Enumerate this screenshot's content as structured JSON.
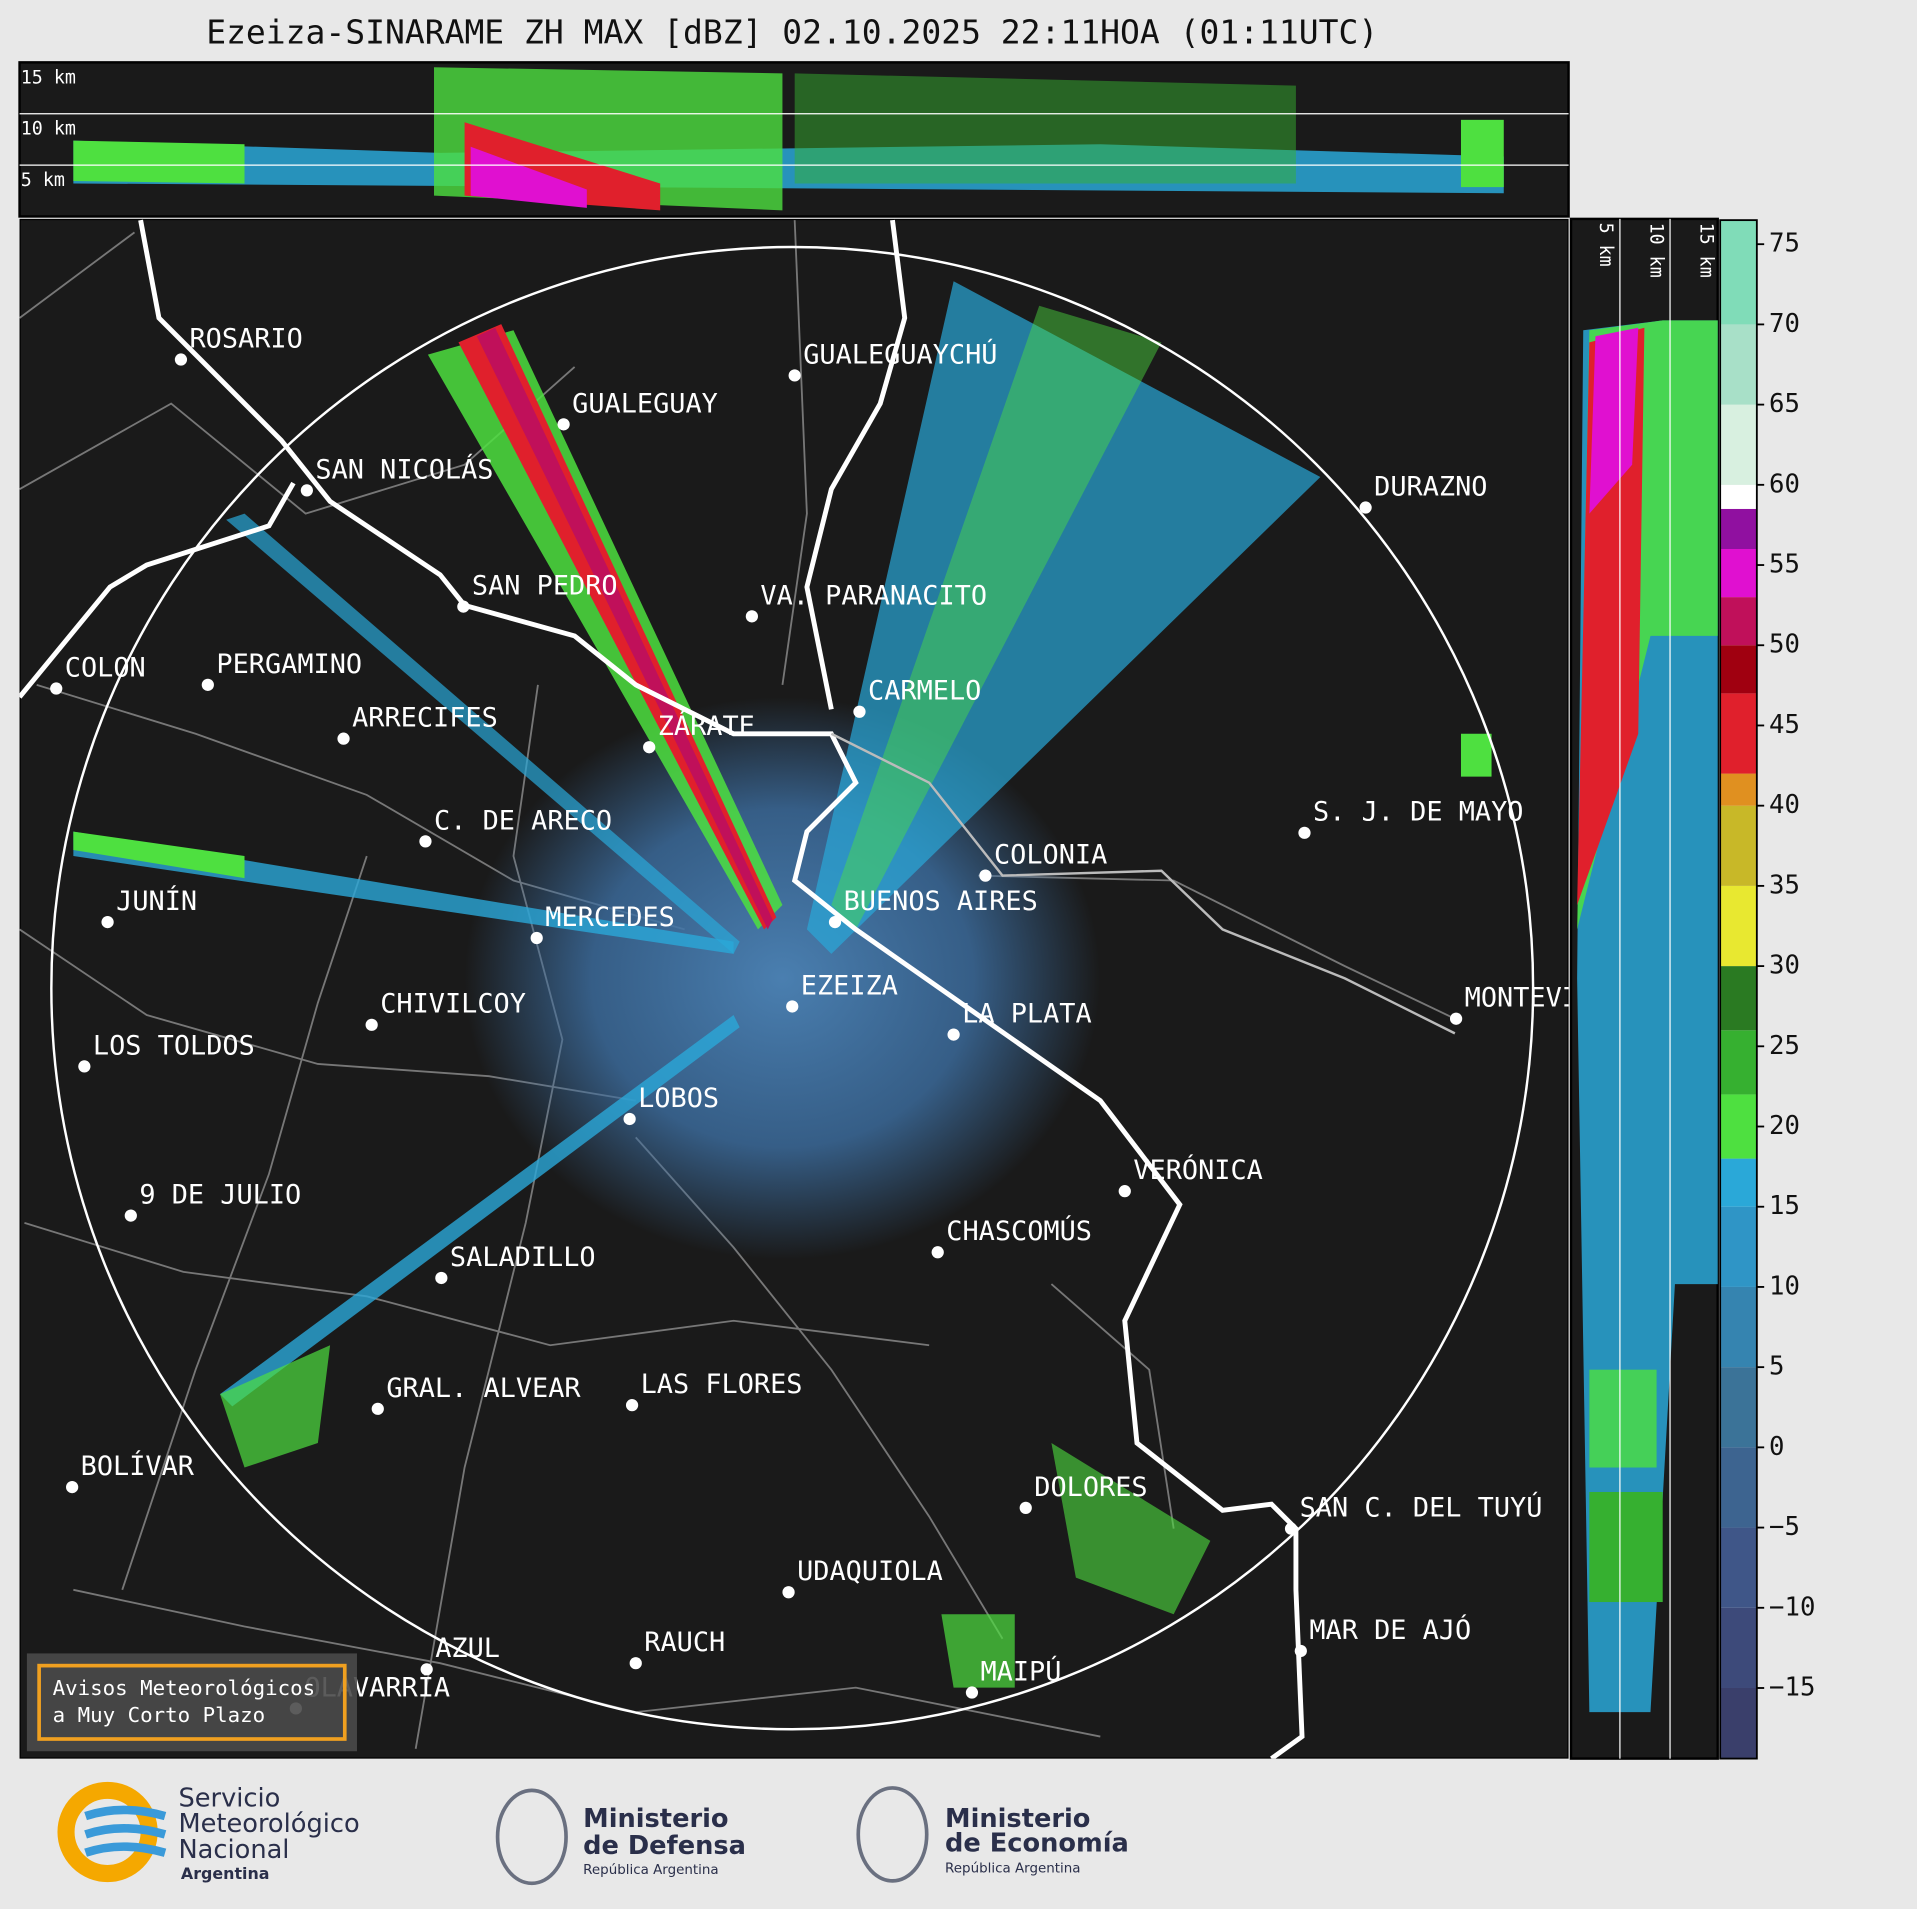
{
  "title": "Ezeiza-SINARAME ZH MAX [dBZ] 02.10.2025 22:11HOA (01:11UTC)",
  "top_panel": {
    "km_labels": [
      "15 km",
      "10 km",
      "5 km"
    ]
  },
  "side_panel": {
    "km_labels": [
      "5 km",
      "10 km",
      "15 km"
    ]
  },
  "cities": [
    "ROSARIO",
    "GUALEGUAYCHÚ",
    "GUALEGUAY",
    "SAN NICOLÁS",
    "DURAZNO",
    "SAN PEDRO",
    "VA. PARANACITO",
    "COLON",
    "PERGAMINO",
    "CARMELO",
    "ARRECIFES",
    "ZÁRATE",
    "S. J. DE MAYO",
    "C. DE ARECO",
    "COLONIA",
    "BUENOS AIRES",
    "JUNÍN",
    "MERCEDES",
    "MONTEVIDEO",
    "EZEIZA",
    "LA PLATA",
    "CHIVILCOY",
    "LOS TOLDOS",
    "LOBOS",
    "VERÓNICA",
    "9 DE JULIO",
    "CHASCOMÚS",
    "SALADILLO",
    "LAS FLORES",
    "GRAL. ALVEAR",
    "BOLÍVAR",
    "DOLORES",
    "SAN C. DEL TUYÚ",
    "UDAQUIOLA",
    "MAR DE AJÓ",
    "RAUCH",
    "AZUL",
    "OLAVARRÍA",
    "MAIPÚ"
  ],
  "colorbar": {
    "lim": [
      -19.4,
      76.5
    ],
    "ticks": [
      75,
      70,
      65,
      60,
      55,
      50,
      45,
      40,
      35,
      30,
      25,
      20,
      15,
      10,
      5,
      0,
      {
        "value": -5,
        "label": "−5"
      },
      {
        "value": -10,
        "label": "−10"
      },
      {
        "value": -15,
        "label": "−15"
      }
    ],
    "bounds": [
      -19.4,
      -15,
      -10,
      -5,
      0,
      5,
      10,
      15,
      18,
      22,
      26,
      30,
      35,
      40,
      42,
      47,
      50,
      53,
      56,
      58.5,
      60,
      65,
      70,
      76.5
    ],
    "colors": [
      "#3a3f6b",
      "#3d4a7a",
      "#3f5688",
      "#3d6490",
      "#3b7398",
      "#3584b0",
      "#2f95c6",
      "#2aa8d8",
      "#4ee040",
      "#36b030",
      "#2a7a22",
      "#e8e830",
      "#c8b828",
      "#e09020",
      "#e0202c",
      "#a00010",
      "#c0105a",
      "#e010d0",
      "#9010a0",
      "#ffffff",
      "#d8f0e0",
      "#a8e0c8",
      "#80dcb8"
    ]
  },
  "warning_button": {
    "lines": [
      "Avisos Meteorológicos",
      "a Muy Corto Plazo"
    ]
  },
  "logos": {
    "smn": [
      "Servicio",
      "Meteorológico",
      "Nacional",
      "Argentina"
    ],
    "defensa": [
      "Ministerio",
      "de Defensa",
      "República Argentina"
    ],
    "economia": [
      "Ministerio",
      "de Economía",
      "República Argentina"
    ]
  }
}
